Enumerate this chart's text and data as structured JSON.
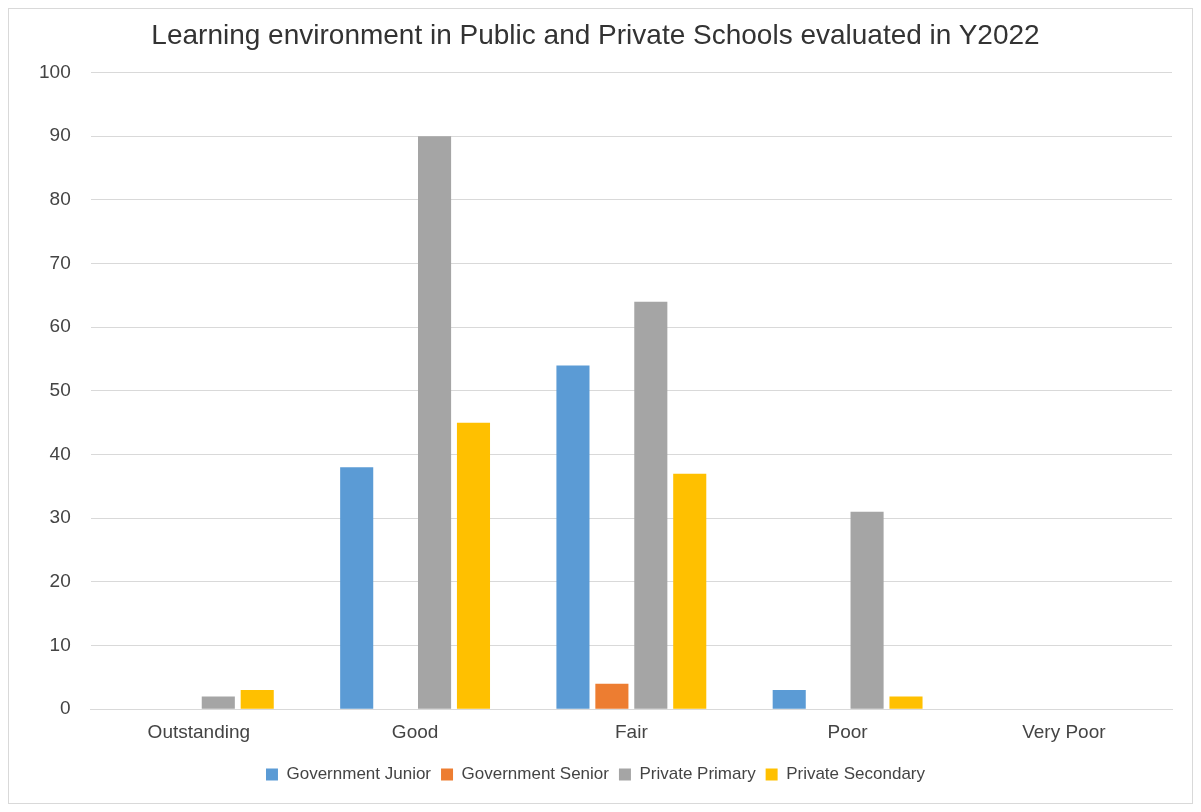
{
  "chart_data": {
    "type": "bar",
    "title": "Learning environment in Public and Private Schools evaluated in Y2022",
    "categories": [
      "Outstanding",
      "Good",
      "Fair",
      "Poor",
      "Very Poor"
    ],
    "series": [
      {
        "name": "Government Junior",
        "color": "#5b9bd5",
        "values": [
          0,
          38,
          54,
          3,
          0
        ]
      },
      {
        "name": "Government Senior",
        "color": "#ed7d31",
        "values": [
          0,
          0,
          4,
          0,
          0
        ]
      },
      {
        "name": "Private Primary",
        "color": "#a5a5a5",
        "values": [
          2,
          90,
          64,
          31,
          0
        ]
      },
      {
        "name": "Private Secondary",
        "color": "#ffc000",
        "values": [
          3,
          45,
          37,
          2,
          0
        ]
      }
    ],
    "ylim": [
      0,
      100
    ],
    "yticks": [
      0,
      10,
      20,
      30,
      40,
      50,
      60,
      70,
      80,
      90,
      100
    ],
    "grid": "y",
    "legend": "bottom"
  }
}
